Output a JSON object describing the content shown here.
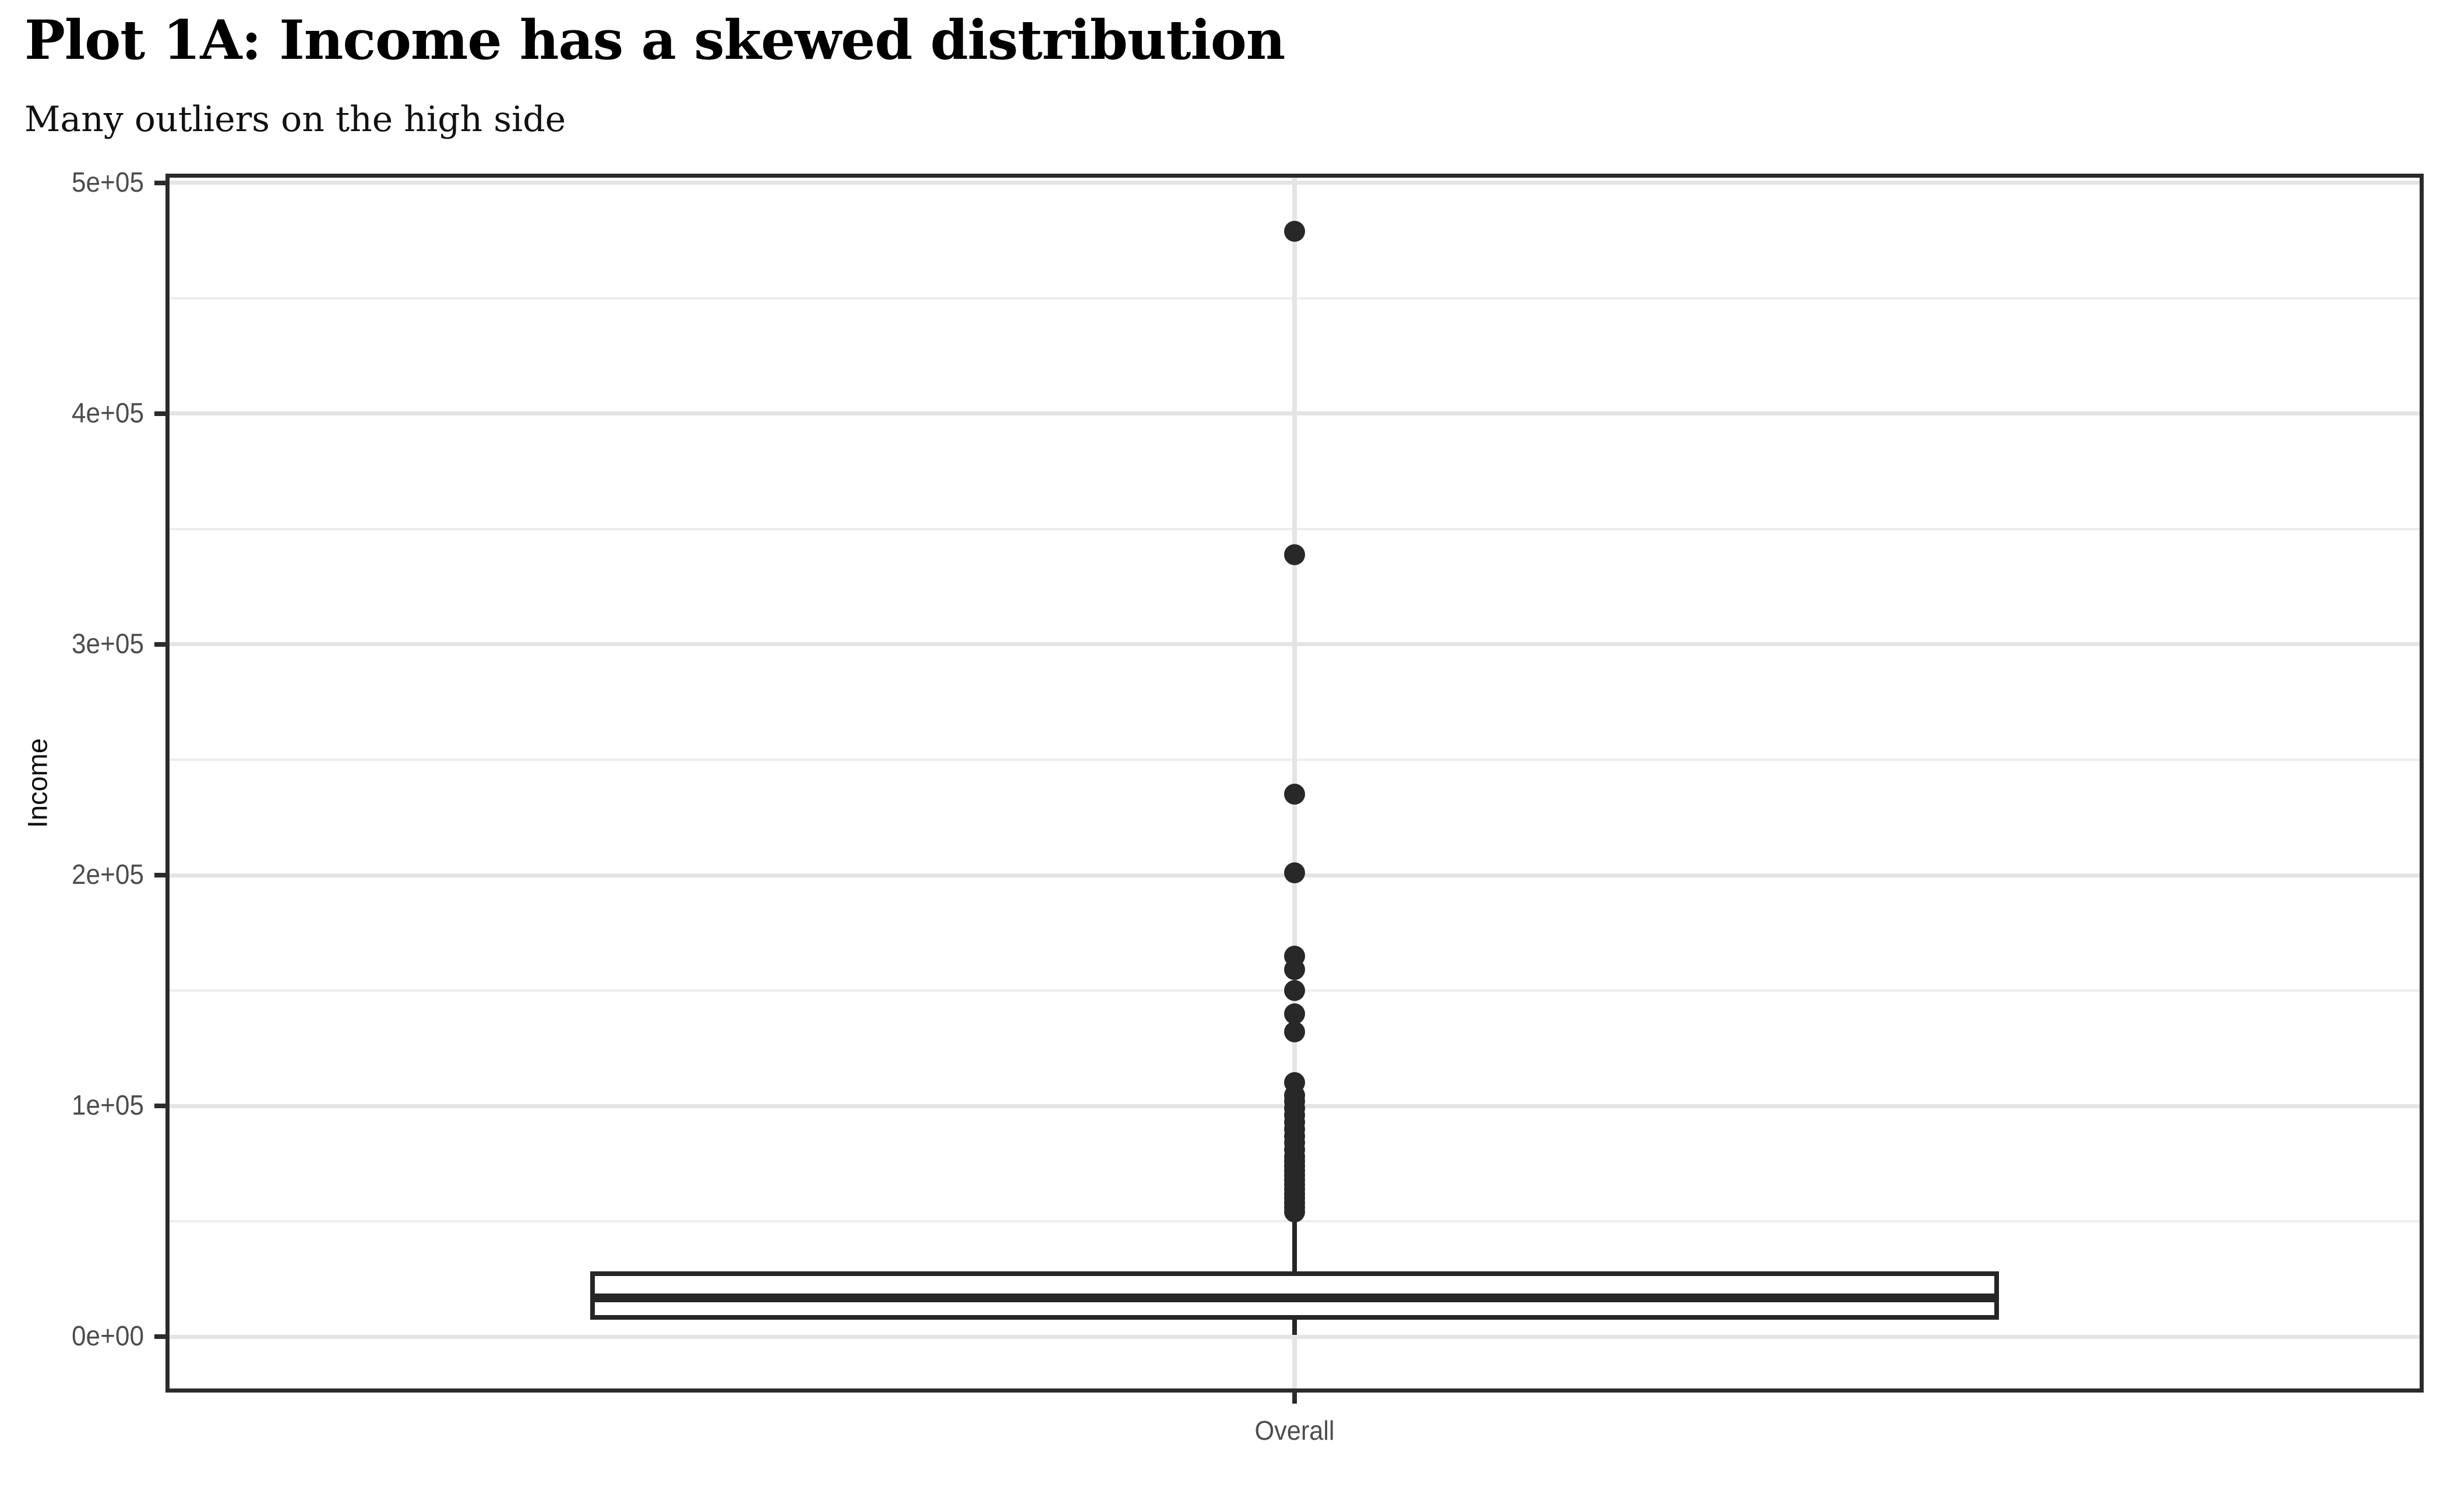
{
  "chart_data": {
    "type": "boxplot",
    "title": "Plot 1A: Income has a skewed distribution",
    "subtitle": "Many outliers on the high side",
    "xlabel": "",
    "ylabel": "Income",
    "categories": [
      "Overall"
    ],
    "ylim": [
      -23200,
      503000
    ],
    "grid": true,
    "legend": false,
    "y_axis": {
      "ticks": [
        {
          "value": 0,
          "label": "0e+00"
        },
        {
          "value": 100000,
          "label": "1e+05"
        },
        {
          "value": 200000,
          "label": "2e+05"
        },
        {
          "value": 300000,
          "label": "3e+05"
        },
        {
          "value": 400000,
          "label": "4e+05"
        },
        {
          "value": 500000,
          "label": "5e+05"
        }
      ],
      "minor_breaks": [
        50000,
        150000,
        250000,
        350000,
        450000
      ]
    },
    "series": [
      {
        "category": "Overall",
        "whisker_low": 800,
        "q1": 8300,
        "median": 16900,
        "q3": 27300,
        "whisker_high": 52000,
        "outliers": [
          54000,
          56000,
          58000,
          60000,
          62000,
          64000,
          66000,
          68000,
          70000,
          72000,
          74000,
          76000,
          78000,
          81000,
          84000,
          87000,
          90000,
          93000,
          96000,
          99000,
          102000,
          104500,
          110000,
          132000,
          140000,
          150000,
          159000,
          165000,
          201000,
          235000,
          339000,
          479000
        ]
      }
    ]
  },
  "colors": {
    "background": "#ffffff",
    "panel_border": "#2b2b2b",
    "grid_major": "#e4e4e4",
    "grid_minor": "#ededed",
    "ink": "#262626",
    "tick_mark": "#2b2b2b",
    "tick_label": "#4d4d4d",
    "title": "#000000"
  }
}
